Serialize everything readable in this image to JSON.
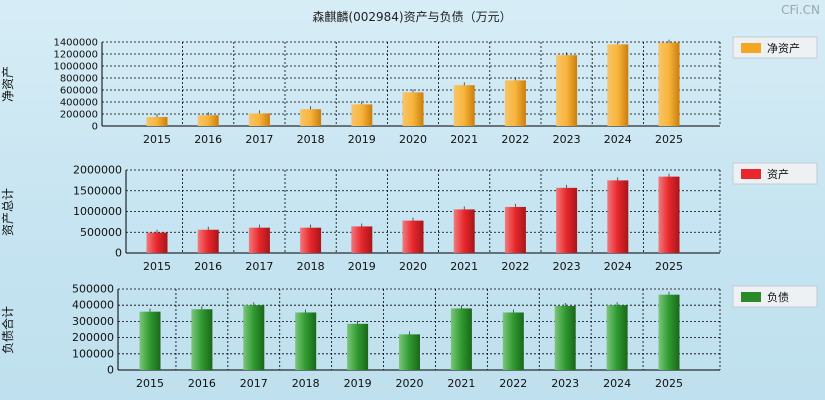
{
  "title": "森麒麟(002984)资产与负债（万元）",
  "watermark": "CFi.CN",
  "chart_data": [
    {
      "type": "bar",
      "panel": "net_assets",
      "ylabel": "净资产",
      "legend": "净资产",
      "color": "#f5a623",
      "categories": [
        "2015",
        "2016",
        "2017",
        "2018",
        "2019",
        "2020",
        "2021",
        "2022",
        "2023",
        "2024",
        "2025"
      ],
      "values": [
        150000,
        180000,
        210000,
        280000,
        360000,
        560000,
        680000,
        760000,
        1180000,
        1360000,
        1390000
      ],
      "ylim": [
        0,
        1400000
      ],
      "yticks": [
        0,
        200000,
        400000,
        600000,
        800000,
        1000000,
        1200000,
        1400000
      ]
    },
    {
      "type": "bar",
      "panel": "total_assets",
      "ylabel": "资产总计",
      "legend": "资产",
      "color": "#e8262b",
      "categories": [
        "2015",
        "2016",
        "2017",
        "2018",
        "2019",
        "2020",
        "2021",
        "2022",
        "2023",
        "2024",
        "2025"
      ],
      "values": [
        490000,
        560000,
        610000,
        610000,
        640000,
        780000,
        1050000,
        1110000,
        1570000,
        1750000,
        1840000
      ],
      "ylim": [
        0,
        2000000
      ],
      "yticks": [
        0,
        500000,
        1000000,
        1500000,
        2000000
      ]
    },
    {
      "type": "bar",
      "panel": "liabilities",
      "ylabel": "负债合计",
      "legend": "负债",
      "color": "#2a8a2a",
      "categories": [
        "2015",
        "2016",
        "2017",
        "2018",
        "2019",
        "2020",
        "2021",
        "2022",
        "2023",
        "2024",
        "2025"
      ],
      "values": [
        360000,
        375000,
        400000,
        355000,
        285000,
        220000,
        380000,
        355000,
        395000,
        400000,
        465000
      ],
      "ylim": [
        0,
        500000
      ],
      "yticks": [
        0,
        100000,
        200000,
        300000,
        400000,
        500000
      ]
    }
  ]
}
